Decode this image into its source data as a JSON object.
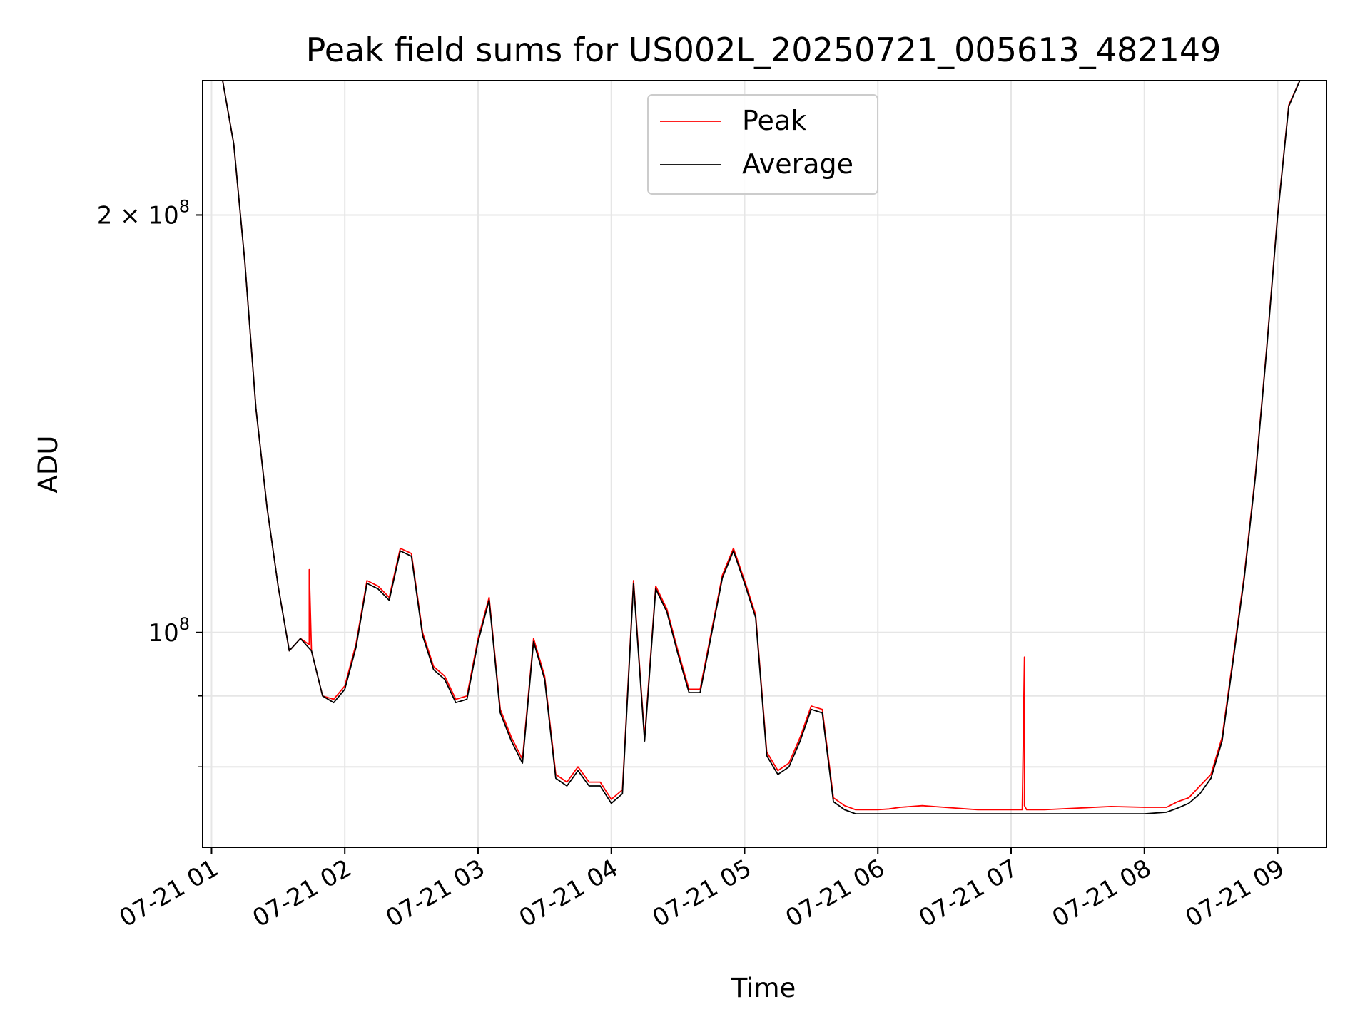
{
  "chart_data": {
    "type": "line",
    "title": "Peak field sums for US002L_20250721_005613_482149",
    "xlabel": "Time",
    "ylabel": "ADU",
    "yscale": "log",
    "xlim": [
      "2025-07-21T00:56",
      "2025-07-21T09:22"
    ],
    "ylim": [
      70000000,
      250000000
    ],
    "x_ticks": [
      {
        "t": "2025-07-21T01:00",
        "label": "07-21 01"
      },
      {
        "t": "2025-07-21T02:00",
        "label": "07-21 02"
      },
      {
        "t": "2025-07-21T03:00",
        "label": "07-21 03"
      },
      {
        "t": "2025-07-21T04:00",
        "label": "07-21 04"
      },
      {
        "t": "2025-07-21T05:00",
        "label": "07-21 05"
      },
      {
        "t": "2025-07-21T06:00",
        "label": "07-21 06"
      },
      {
        "t": "2025-07-21T07:00",
        "label": "07-21 07"
      },
      {
        "t": "2025-07-21T08:00",
        "label": "07-21 08"
      },
      {
        "t": "2025-07-21T09:00",
        "label": "07-21 09"
      }
    ],
    "y_major_ticks": [
      {
        "value": 100000000,
        "base": "10",
        "exp": "8",
        "mult": ""
      },
      {
        "value": 200000000,
        "base": "10",
        "exp": "8",
        "mult": "2 × "
      }
    ],
    "y_minor_ticks": [
      80000000,
      90000000
    ],
    "grid": true,
    "legend_placement": "top-center",
    "series": [
      {
        "name": "Peak",
        "color": "#ff0000",
        "x": [
          "2025-07-21T00:56",
          "2025-07-21T01:05",
          "2025-07-21T01:10",
          "2025-07-21T01:15",
          "2025-07-21T01:20",
          "2025-07-21T01:25",
          "2025-07-21T01:30",
          "2025-07-21T01:35",
          "2025-07-21T01:40",
          "2025-07-21T01:44",
          "2025-07-21T01:44",
          "2025-07-21T01:45",
          "2025-07-21T01:50",
          "2025-07-21T01:55",
          "2025-07-21T02:00",
          "2025-07-21T02:05",
          "2025-07-21T02:10",
          "2025-07-21T02:15",
          "2025-07-21T02:20",
          "2025-07-21T02:25",
          "2025-07-21T02:30",
          "2025-07-21T02:35",
          "2025-07-21T02:40",
          "2025-07-21T02:45",
          "2025-07-21T02:50",
          "2025-07-21T02:55",
          "2025-07-21T03:00",
          "2025-07-21T03:05",
          "2025-07-21T03:10",
          "2025-07-21T03:15",
          "2025-07-21T03:20",
          "2025-07-21T03:25",
          "2025-07-21T03:30",
          "2025-07-21T03:35",
          "2025-07-21T03:40",
          "2025-07-21T03:45",
          "2025-07-21T03:50",
          "2025-07-21T03:55",
          "2025-07-21T04:00",
          "2025-07-21T04:05",
          "2025-07-21T04:10",
          "2025-07-21T04:15",
          "2025-07-21T04:20",
          "2025-07-21T04:25",
          "2025-07-21T04:30",
          "2025-07-21T04:35",
          "2025-07-21T04:40",
          "2025-07-21T04:45",
          "2025-07-21T04:50",
          "2025-07-21T04:55",
          "2025-07-21T05:00",
          "2025-07-21T05:05",
          "2025-07-21T05:10",
          "2025-07-21T05:15",
          "2025-07-21T05:20",
          "2025-07-21T05:25",
          "2025-07-21T05:30",
          "2025-07-21T05:35",
          "2025-07-21T05:40",
          "2025-07-21T05:45",
          "2025-07-21T05:50",
          "2025-07-21T05:55",
          "2025-07-21T06:00",
          "2025-07-21T06:05",
          "2025-07-21T06:10",
          "2025-07-21T06:15",
          "2025-07-21T06:20",
          "2025-07-21T06:25",
          "2025-07-21T06:30",
          "2025-07-21T06:35",
          "2025-07-21T06:40",
          "2025-07-21T06:45",
          "2025-07-21T06:50",
          "2025-07-21T06:55",
          "2025-07-21T07:00",
          "2025-07-21T07:05",
          "2025-07-21T07:06",
          "2025-07-21T07:06",
          "2025-07-21T07:07",
          "2025-07-21T07:15",
          "2025-07-21T07:30",
          "2025-07-21T07:45",
          "2025-07-21T08:00",
          "2025-07-21T08:10",
          "2025-07-21T08:15",
          "2025-07-21T08:20",
          "2025-07-21T08:25",
          "2025-07-21T08:30",
          "2025-07-21T08:35",
          "2025-07-21T08:40",
          "2025-07-21T08:45",
          "2025-07-21T08:50",
          "2025-07-21T08:55",
          "2025-07-21T09:00",
          "2025-07-21T09:05",
          "2025-07-21T09:10"
        ],
        "y": [
          250000000,
          250000000,
          225000000,
          185000000,
          145000000,
          123000000,
          108000000,
          97000000,
          99000000,
          98000000,
          111000000,
          97000000,
          90000000,
          89500000,
          91500000,
          98000000,
          109000000,
          108000000,
          106000000,
          115000000,
          114000000,
          100000000,
          94500000,
          93000000,
          89500000,
          90000000,
          99000000,
          106000000,
          88000000,
          84000000,
          81000000,
          99000000,
          93000000,
          79000000,
          78000000,
          80000000,
          78000000,
          78000000,
          75800000,
          77000000,
          109000000,
          84000000,
          108000000,
          104000000,
          97000000,
          91000000,
          91000000,
          100000000,
          110000000,
          115000000,
          109000000,
          103000000,
          82000000,
          79500000,
          80500000,
          84000000,
          88500000,
          88000000,
          76000000,
          75000000,
          74500000,
          74500000,
          74500000,
          74600000,
          74800000,
          74900000,
          75000000,
          74900000,
          74800000,
          74700000,
          74600000,
          74500000,
          74500000,
          74500000,
          74500000,
          74500000,
          96000000,
          75000000,
          74500000,
          74500000,
          74700000,
          74900000,
          74800000,
          74800000,
          75500000,
          76000000,
          77500000,
          79000000,
          84000000,
          96000000,
          110000000,
          130000000,
          160000000,
          200000000,
          240000000,
          250000000
        ],
        "note": ""
      },
      {
        "name": "Average",
        "color": "#000000",
        "x": [
          "2025-07-21T00:56",
          "2025-07-21T01:05",
          "2025-07-21T01:10",
          "2025-07-21T01:15",
          "2025-07-21T01:20",
          "2025-07-21T01:25",
          "2025-07-21T01:30",
          "2025-07-21T01:35",
          "2025-07-21T01:40",
          "2025-07-21T01:45",
          "2025-07-21T01:50",
          "2025-07-21T01:55",
          "2025-07-21T02:00",
          "2025-07-21T02:05",
          "2025-07-21T02:10",
          "2025-07-21T02:15",
          "2025-07-21T02:20",
          "2025-07-21T02:25",
          "2025-07-21T02:30",
          "2025-07-21T02:35",
          "2025-07-21T02:40",
          "2025-07-21T02:45",
          "2025-07-21T02:50",
          "2025-07-21T02:55",
          "2025-07-21T03:00",
          "2025-07-21T03:05",
          "2025-07-21T03:10",
          "2025-07-21T03:15",
          "2025-07-21T03:20",
          "2025-07-21T03:25",
          "2025-07-21T03:30",
          "2025-07-21T03:35",
          "2025-07-21T03:40",
          "2025-07-21T03:45",
          "2025-07-21T03:50",
          "2025-07-21T03:55",
          "2025-07-21T04:00",
          "2025-07-21T04:05",
          "2025-07-21T04:10",
          "2025-07-21T04:15",
          "2025-07-21T04:20",
          "2025-07-21T04:25",
          "2025-07-21T04:30",
          "2025-07-21T04:35",
          "2025-07-21T04:40",
          "2025-07-21T04:45",
          "2025-07-21T04:50",
          "2025-07-21T04:55",
          "2025-07-21T05:00",
          "2025-07-21T05:05",
          "2025-07-21T05:10",
          "2025-07-21T05:15",
          "2025-07-21T05:20",
          "2025-07-21T05:25",
          "2025-07-21T05:30",
          "2025-07-21T05:35",
          "2025-07-21T05:40",
          "2025-07-21T05:45",
          "2025-07-21T05:50",
          "2025-07-21T05:55",
          "2025-07-21T06:00",
          "2025-07-21T06:05",
          "2025-07-21T06:10",
          "2025-07-21T06:15",
          "2025-07-21T06:30",
          "2025-07-21T06:45",
          "2025-07-21T07:00",
          "2025-07-21T07:15",
          "2025-07-21T07:30",
          "2025-07-21T07:45",
          "2025-07-21T08:00",
          "2025-07-21T08:10",
          "2025-07-21T08:15",
          "2025-07-21T08:20",
          "2025-07-21T08:25",
          "2025-07-21T08:30",
          "2025-07-21T08:35",
          "2025-07-21T08:40",
          "2025-07-21T08:45",
          "2025-07-21T08:50",
          "2025-07-21T08:55",
          "2025-07-21T09:00",
          "2025-07-21T09:05",
          "2025-07-21T09:10"
        ],
        "y": [
          250000000,
          250000000,
          225000000,
          185000000,
          145000000,
          123000000,
          108000000,
          97000000,
          99000000,
          97000000,
          90000000,
          89000000,
          91000000,
          97500000,
          108500000,
          107500000,
          105500000,
          114500000,
          113500000,
          99500000,
          94000000,
          92500000,
          89000000,
          89500000,
          98500000,
          105500000,
          87500000,
          83500000,
          80500000,
          98500000,
          92500000,
          78500000,
          77500000,
          79500000,
          77500000,
          77500000,
          75300000,
          76500000,
          108500000,
          83500000,
          107500000,
          103500000,
          96500000,
          90500000,
          90500000,
          99500000,
          109500000,
          114500000,
          108500000,
          102500000,
          81500000,
          79000000,
          80000000,
          83500000,
          88000000,
          87500000,
          75500000,
          74500000,
          74000000,
          74000000,
          74000000,
          74000000,
          74000000,
          74000000,
          74000000,
          74000000,
          74000000,
          74000000,
          74000000,
          74000000,
          74000000,
          74200000,
          74700000,
          75300000,
          76500000,
          78500000,
          83500000,
          95500000,
          109500000,
          129500000,
          159500000,
          199500000,
          239500000,
          250000000
        ]
      }
    ]
  }
}
